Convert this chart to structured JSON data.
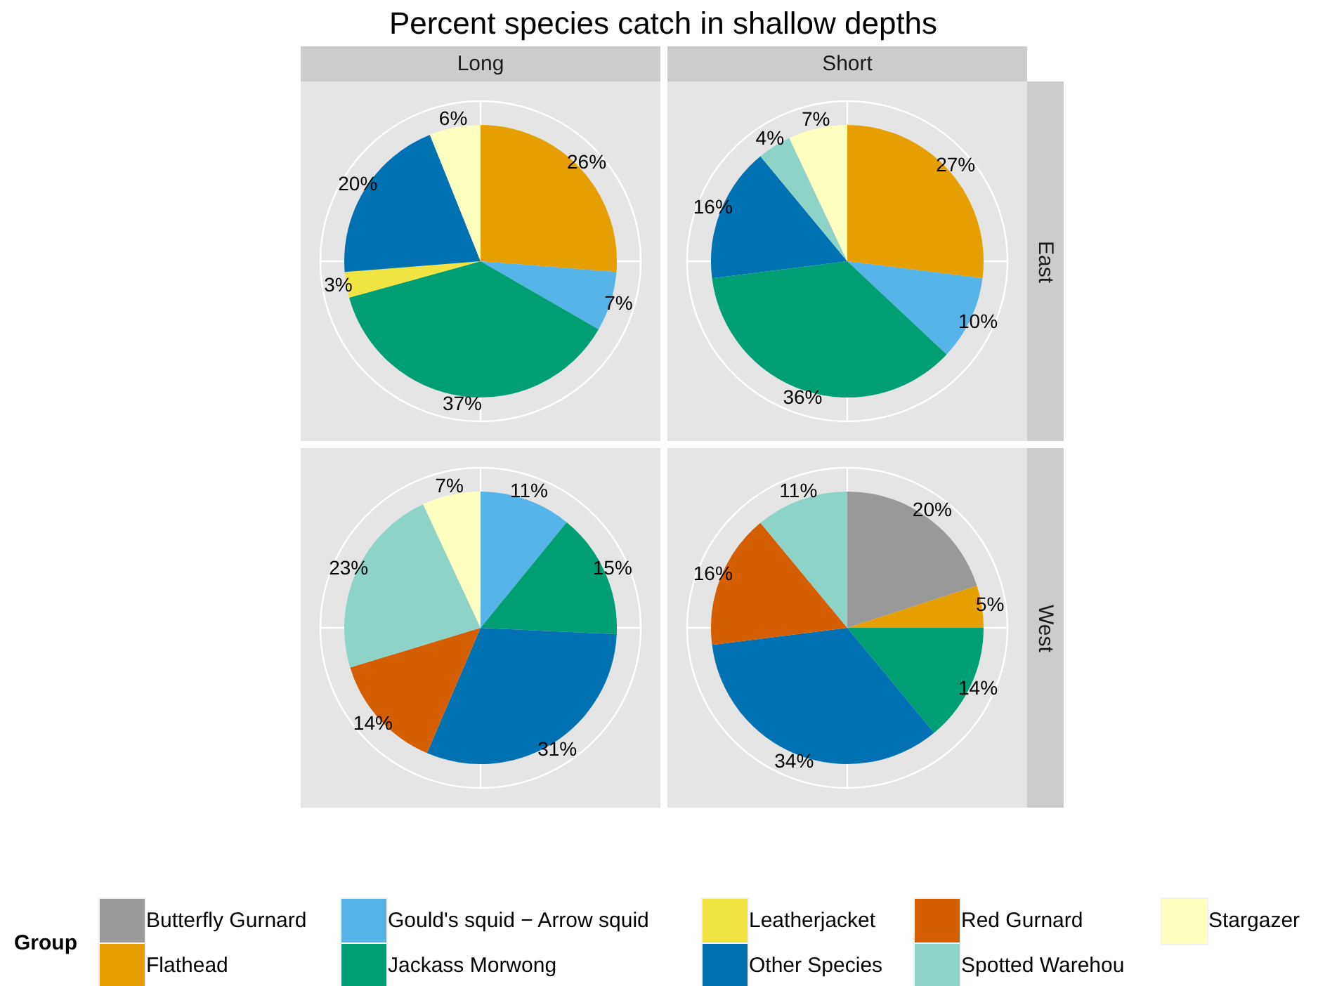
{
  "chart_data": [
    {
      "type": "pie",
      "title": "Percent species catch in shallow depths",
      "subtitle": "Long",
      "grid": true,
      "legend": "bottom",
      "legend_title": "Group",
      "categories": [
        "Butterfly Gurnard",
        "Flathead",
        "Gould's squid − Arrow squid",
        "Jackass Morwong",
        "Leatherjacket",
        "Other Species",
        "Red Gurnard",
        "Spotted Warehou",
        "Stargazer"
      ],
      "values": [
        null,
        26,
        7,
        37,
        3,
        20,
        null,
        null,
        6
      ],
      "value_labels": [
        null,
        "26%",
        "7%",
        "37%",
        "3%",
        "20%",
        null,
        null,
        "6%"
      ],
      "colors": [
        "#999999",
        "#e69f00",
        "#56b4e9",
        "#009e73",
        "#f0e442",
        "#0072b2",
        "#d55e00",
        "#8dd3c7",
        "#ffffbf"
      ]
    },
    {
      "type": "pie",
      "subtitle": "Short",
      "y2label": "East",
      "grid": true,
      "categories": [
        null,
        null,
        null,
        null,
        null,
        null
      ],
      "values": [
        27,
        10,
        36,
        16,
        4,
        7
      ],
      "value_labels": [
        "27%",
        "10%",
        "36%",
        "16%",
        "4%",
        "7%"
      ],
      "colors": [
        "#e69f00",
        "#56b4e9",
        "#009e73",
        "#0072b2",
        "#8dd3c7",
        "#ffffbf"
      ]
    },
    {
      "type": "pie",
      "grid": true,
      "categories": [
        null,
        null,
        null,
        null,
        null,
        null
      ],
      "values": [
        11,
        15,
        31,
        14,
        23,
        7
      ],
      "value_labels": [
        "11%",
        "15%",
        "31%",
        "14%",
        "23%",
        "7%"
      ],
      "colors": [
        "#56b4e9",
        "#009e73",
        "#0072b2",
        "#d55e00",
        "#8dd3c7",
        "#ffffbf"
      ]
    },
    {
      "type": "pie",
      "y2label": "West",
      "grid": true,
      "categories": [
        null,
        null,
        null,
        null,
        null,
        null
      ],
      "values": [
        20,
        5,
        14,
        34,
        16,
        11
      ],
      "value_labels": [
        "20%",
        "5%",
        "14%",
        "34%",
        "16%",
        "11%"
      ],
      "colors": [
        "#999999",
        "#e69f00",
        "#009e73",
        "#0072b2",
        "#d55e00",
        "#8dd3c7"
      ]
    }
  ]
}
